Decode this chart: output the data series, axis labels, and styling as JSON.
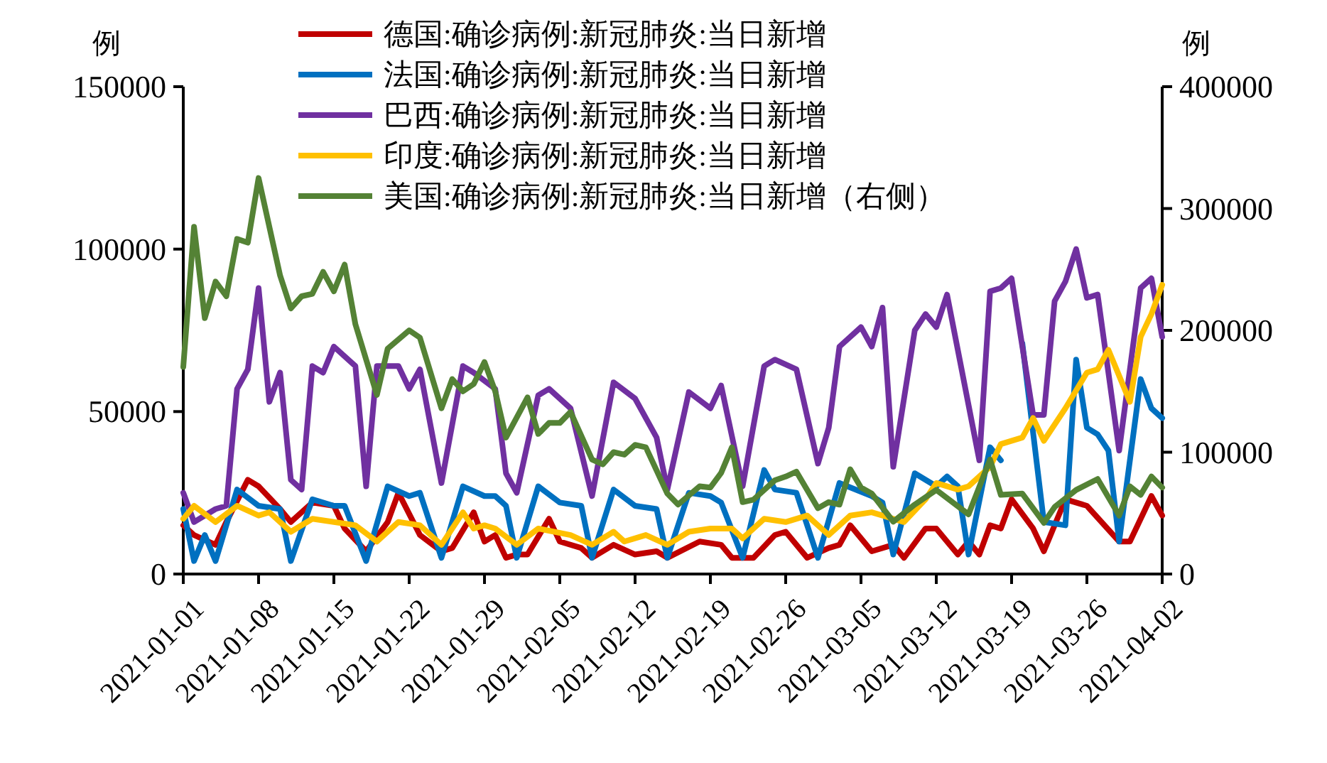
{
  "chart_data": {
    "type": "line",
    "ylabel": "例",
    "y2label": "例",
    "legend": "top",
    "xlim": [
      "2021-01-01",
      "2021-04-02"
    ],
    "xticks": [
      "2021-01-01",
      "2021-01-08",
      "2021-01-15",
      "2021-01-22",
      "2021-01-29",
      "2021-02-05",
      "2021-02-12",
      "2021-02-19",
      "2021-02-26",
      "2021-03-05",
      "2021-03-12",
      "2021-03-19",
      "2021-03-26",
      "2021-04-02"
    ],
    "ylim": [
      0,
      150000
    ],
    "yticks": [
      0,
      50000,
      100000,
      150000
    ],
    "y2lim": [
      0,
      400000
    ],
    "y2ticks": [
      0,
      100000,
      200000,
      300000,
      400000
    ],
    "series": [
      {
        "name": "德国:确诊病例:新冠肺炎:当日新增",
        "color": "#c00000",
        "x": [
          "2021-01-01",
          "2021-01-02",
          "2021-01-04",
          "2021-01-05",
          "2021-01-07",
          "2021-01-08",
          "2021-01-10",
          "2021-01-11",
          "2021-01-13",
          "2021-01-15",
          "2021-01-16",
          "2021-01-18",
          "2021-01-20",
          "2021-01-21",
          "2021-01-23",
          "2021-01-25",
          "2021-01-26",
          "2021-01-28",
          "2021-01-29",
          "2021-01-30",
          "2021-01-31",
          "2021-02-01",
          "2021-02-02",
          "2021-02-04",
          "2021-02-05",
          "2021-02-07",
          "2021-02-08",
          "2021-02-10",
          "2021-02-12",
          "2021-02-14",
          "2021-02-15",
          "2021-02-18",
          "2021-02-20",
          "2021-02-21",
          "2021-02-23",
          "2021-02-25",
          "2021-02-26",
          "2021-02-28",
          "2021-03-02",
          "2021-03-03",
          "2021-03-04",
          "2021-03-06",
          "2021-03-08",
          "2021-03-09",
          "2021-03-11",
          "2021-03-12",
          "2021-03-14",
          "2021-03-15",
          "2021-03-16",
          "2021-03-17",
          "2021-03-18",
          "2021-03-19",
          "2021-03-21",
          "2021-03-22",
          "2021-03-24",
          "2021-03-26",
          "2021-03-29",
          "2021-03-30",
          "2021-04-01",
          "2021-04-02"
        ],
        "values": [
          15000,
          12000,
          9000,
          16000,
          29000,
          27000,
          20000,
          16000,
          22000,
          21000,
          14000,
          7000,
          16000,
          25000,
          12000,
          7000,
          8000,
          19000,
          10000,
          12000,
          5000,
          6000,
          6000,
          17000,
          10000,
          8000,
          5000,
          9000,
          6000,
          7000,
          5000,
          10000,
          9000,
          5000,
          5000,
          12000,
          13000,
          5000,
          8000,
          9000,
          15000,
          7000,
          9000,
          5000,
          14000,
          14000,
          6000,
          10000,
          6000,
          15000,
          14000,
          23000,
          14000,
          7000,
          23000,
          21000,
          10000,
          10000,
          24000,
          18000
        ]
      },
      {
        "name": "法国:确诊病例:新冠肺炎:当日新增",
        "color": "#0070c0",
        "x": [
          "2021-01-01",
          "2021-01-02",
          "2021-01-03",
          "2021-01-04",
          "2021-01-06",
          "2021-01-08",
          "2021-01-10",
          "2021-01-11",
          "2021-01-13",
          "2021-01-15",
          "2021-01-16",
          "2021-01-18",
          "2021-01-20",
          "2021-01-22",
          "2021-01-23",
          "2021-01-25",
          "2021-01-27",
          "2021-01-29",
          "2021-01-30",
          "2021-01-31",
          "2021-02-01",
          "2021-02-03",
          "2021-02-05",
          "2021-02-07",
          "2021-02-08",
          "2021-02-10",
          "2021-02-12",
          "2021-02-14",
          "2021-02-15",
          "2021-02-17",
          "2021-02-19",
          "2021-02-20",
          "2021-02-22",
          "2021-02-24",
          "2021-02-25",
          "2021-02-27",
          "2021-03-01",
          "2021-03-03",
          "2021-03-06",
          "2021-03-07",
          "2021-03-08",
          "2021-03-10",
          "2021-03-12",
          "2021-03-13",
          "2021-03-14",
          "2021-03-15",
          "2021-03-17",
          "2021-03-18",
          "2021-03-19",
          "2021-03-20",
          "2021-03-22",
          "2021-03-24",
          "2021-03-25",
          "2021-03-26",
          "2021-03-27",
          "2021-03-28",
          "2021-03-29",
          "2021-03-31",
          "2021-04-01",
          "2021-04-02"
        ],
        "values": [
          20000,
          4000,
          12000,
          4000,
          26000,
          21000,
          20000,
          4000,
          23000,
          21000,
          21000,
          4000,
          27000,
          24000,
          25000,
          5000,
          27000,
          24000,
          24000,
          21000,
          5000,
          27000,
          22000,
          21000,
          5000,
          26000,
          21000,
          20000,
          5000,
          25000,
          24000,
          22000,
          5000,
          32000,
          26000,
          25000,
          5000,
          28000,
          24000,
          22000,
          6000,
          31000,
          27000,
          30000,
          27000,
          6000,
          39000,
          35000,
          null,
          71000,
          16000,
          15000,
          66000,
          45000,
          43000,
          38000,
          10000,
          60000,
          51000,
          48000
        ]
      },
      {
        "name": "巴西:确诊病例:新冠肺炎:当日新增",
        "color": "#7030a0",
        "x": [
          "2021-01-01",
          "2021-01-02",
          "2021-01-04",
          "2021-01-05",
          "2021-01-06",
          "2021-01-07",
          "2021-01-08",
          "2021-01-09",
          "2021-01-10",
          "2021-01-11",
          "2021-01-12",
          "2021-01-13",
          "2021-01-14",
          "2021-01-15",
          "2021-01-17",
          "2021-01-18",
          "2021-01-19",
          "2021-01-21",
          "2021-01-22",
          "2021-01-23",
          "2021-01-25",
          "2021-01-27",
          "2021-01-28",
          "2021-01-30",
          "2021-01-31",
          "2021-02-01",
          "2021-02-03",
          "2021-02-04",
          "2021-02-06",
          "2021-02-08",
          "2021-02-10",
          "2021-02-12",
          "2021-02-14",
          "2021-02-15",
          "2021-02-17",
          "2021-02-19",
          "2021-02-20",
          "2021-02-22",
          "2021-02-24",
          "2021-02-25",
          "2021-02-27",
          "2021-03-01",
          "2021-03-02",
          "2021-03-03",
          "2021-03-05",
          "2021-03-06",
          "2021-03-07",
          "2021-03-08",
          "2021-03-10",
          "2021-03-11",
          "2021-03-12",
          "2021-03-13",
          "2021-03-16",
          "2021-03-17",
          "2021-03-18",
          "2021-03-19",
          "2021-03-21",
          "2021-03-22",
          "2021-03-23",
          "2021-03-24",
          "2021-03-25",
          "2021-03-26",
          "2021-03-27",
          "2021-03-29",
          "2021-03-31",
          "2021-04-01",
          "2021-04-02"
        ],
        "values": [
          25000,
          16000,
          20000,
          21000,
          57000,
          63000,
          88000,
          53000,
          62000,
          29000,
          26000,
          64000,
          62000,
          70000,
          64000,
          27000,
          64000,
          64000,
          57000,
          63000,
          28000,
          64000,
          62000,
          57000,
          31000,
          25000,
          55000,
          57000,
          51000,
          24000,
          59000,
          54000,
          42000,
          26000,
          56000,
          51000,
          58000,
          27000,
          64000,
          66000,
          63000,
          34000,
          45000,
          70000,
          76000,
          70000,
          82000,
          33000,
          75000,
          80000,
          76000,
          86000,
          35000,
          87000,
          88000,
          91000,
          49000,
          49000,
          84000,
          90000,
          100000,
          85000,
          86000,
          38000,
          88000,
          91000,
          73000
        ]
      },
      {
        "name": "印度:确诊病例:新冠肺炎:当日新增",
        "color": "#ffc000",
        "x": [
          "2021-01-01",
          "2021-01-02",
          "2021-01-04",
          "2021-01-06",
          "2021-01-08",
          "2021-01-09",
          "2021-01-11",
          "2021-01-13",
          "2021-01-15",
          "2021-01-17",
          "2021-01-19",
          "2021-01-21",
          "2021-01-23",
          "2021-01-25",
          "2021-01-27",
          "2021-01-28",
          "2021-01-29",
          "2021-01-30",
          "2021-02-01",
          "2021-02-03",
          "2021-02-06",
          "2021-02-08",
          "2021-02-10",
          "2021-02-11",
          "2021-02-13",
          "2021-02-15",
          "2021-02-17",
          "2021-02-19",
          "2021-02-21",
          "2021-02-22",
          "2021-02-24",
          "2021-02-26",
          "2021-02-28",
          "2021-03-02",
          "2021-03-04",
          "2021-03-06",
          "2021-03-07",
          "2021-03-09",
          "2021-03-11",
          "2021-03-12",
          "2021-03-14",
          "2021-03-15",
          "2021-03-17",
          "2021-03-18",
          "2021-03-20",
          "2021-03-21",
          "2021-03-22",
          "2021-03-24",
          "2021-03-26",
          "2021-03-27",
          "2021-03-28",
          "2021-03-30",
          "2021-03-31",
          "2021-04-01",
          "2021-04-02"
        ],
        "values": [
          17000,
          21000,
          16000,
          21000,
          18000,
          19000,
          13000,
          17000,
          16000,
          15000,
          10000,
          16000,
          15000,
          9000,
          19000,
          14000,
          15000,
          14000,
          9000,
          14000,
          12000,
          9000,
          13000,
          10000,
          12000,
          9000,
          13000,
          14000,
          14000,
          11000,
          17000,
          16000,
          18000,
          12000,
          18000,
          19000,
          18000,
          16000,
          23000,
          28000,
          26000,
          27000,
          33000,
          40000,
          42000,
          48000,
          41000,
          51000,
          62000,
          63000,
          69000,
          53000,
          73000,
          80000,
          89000
        ]
      },
      {
        "name": "美国:确诊病例:新冠肺炎:当日新增（右侧）",
        "color": "#548235",
        "axis": "y2",
        "x": [
          "2021-01-01",
          "2021-01-02",
          "2021-01-03",
          "2021-01-04",
          "2021-01-05",
          "2021-01-06",
          "2021-01-07",
          "2021-01-08",
          "2021-01-10",
          "2021-01-11",
          "2021-01-12",
          "2021-01-13",
          "2021-01-14",
          "2021-01-15",
          "2021-01-16",
          "2021-01-17",
          "2021-01-19",
          "2021-01-20",
          "2021-01-22",
          "2021-01-23",
          "2021-01-25",
          "2021-01-26",
          "2021-01-27",
          "2021-01-28",
          "2021-01-29",
          "2021-01-30",
          "2021-01-31",
          "2021-02-02",
          "2021-02-03",
          "2021-02-04",
          "2021-02-05",
          "2021-02-06",
          "2021-02-08",
          "2021-02-09",
          "2021-02-10",
          "2021-02-11",
          "2021-02-12",
          "2021-02-13",
          "2021-02-15",
          "2021-02-16",
          "2021-02-18",
          "2021-02-19",
          "2021-02-20",
          "2021-02-21",
          "2021-02-22",
          "2021-02-23",
          "2021-02-25",
          "2021-02-26",
          "2021-02-27",
          "2021-03-01",
          "2021-03-02",
          "2021-03-03",
          "2021-03-04",
          "2021-03-05",
          "2021-03-06",
          "2021-03-08",
          "2021-03-10",
          "2021-03-12",
          "2021-03-15",
          "2021-03-17",
          "2021-03-18",
          "2021-03-20",
          "2021-03-22",
          "2021-03-23",
          "2021-03-25",
          "2021-03-27",
          "2021-03-29",
          "2021-03-30",
          "2021-03-31",
          "2021-04-01",
          "2021-04-02"
        ],
        "values": [
          170000,
          285000,
          210000,
          240000,
          228000,
          275000,
          272000,
          325000,
          245000,
          218000,
          228000,
          230000,
          248000,
          232000,
          254000,
          205000,
          147000,
          185000,
          200000,
          194000,
          136000,
          160000,
          150000,
          156000,
          174000,
          150000,
          112000,
          145000,
          115000,
          124000,
          124000,
          133000,
          94000,
          90000,
          100000,
          98000,
          106000,
          104000,
          66000,
          57000,
          72000,
          71000,
          83000,
          104000,
          59000,
          61000,
          77000,
          80000,
          84000,
          54000,
          59000,
          57000,
          86000,
          71000,
          66000,
          43000,
          57000,
          69000,
          49000,
          94000,
          65000,
          66000,
          42000,
          55000,
          69000,
          78000,
          48000,
          72000,
          65000,
          80000,
          71000
        ]
      }
    ]
  }
}
